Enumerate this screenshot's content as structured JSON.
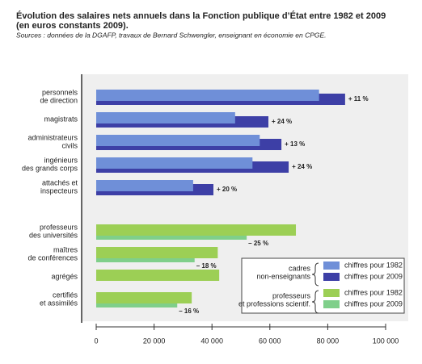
{
  "chart_data": {
    "type": "bar",
    "orientation": "horizontal",
    "title": [
      "Évolution des salaires nets annuels dans la Fonction publique d’État entre 1982 et 2009",
      "(en euros constants 2009)."
    ],
    "source": "Sources : données de la DGAFP, travaux de Bernard Schwengler, enseignant en économie en CPGE.",
    "xlim": [
      0,
      100000
    ],
    "xticks": [
      0,
      {
        "value": 20000,
        "label": "20 000"
      },
      {
        "value": 40000,
        "label": "40 000"
      },
      {
        "value": 60000,
        "label": "60 000"
      },
      {
        "value": 80000,
        "label": "80 000"
      },
      {
        "value": 100000,
        "label": "100 000"
      }
    ],
    "groups": [
      {
        "name": [
          "cadres",
          "non-enseignants"
        ],
        "categories": [
          [
            "personnels",
            "de direction"
          ],
          [
            "magistrats"
          ],
          [
            "administrateurs",
            "civils"
          ],
          [
            "ingénieurs",
            "des grands corps"
          ],
          [
            "attachés et",
            "inspecteurs"
          ]
        ],
        "series": [
          {
            "name": "chiffres pour 1982",
            "color": "#6f8fd8",
            "values": [
              77000,
              48000,
              56500,
              54000,
              33500
            ]
          },
          {
            "name": "chiffres pour 2009",
            "color": "#3d3fa6",
            "values": [
              86000,
              59500,
              64000,
              66500,
              40500
            ]
          }
        ],
        "value_labels": [
          "+ 11 %",
          "+ 24 %",
          "+ 13 %",
          "+ 24 %",
          "+ 20 %"
        ]
      },
      {
        "name": [
          "professeurs",
          "et professions scientif."
        ],
        "categories": [
          [
            "professeurs",
            "des universités"
          ],
          [
            "maîtres",
            "de conférences"
          ],
          [
            "agrégés"
          ],
          [
            "certifiés",
            "et assimilés"
          ]
        ],
        "series": [
          {
            "name": "chiffres pour 1982",
            "color": "#9ccf55",
            "values": [
              69000,
              42000,
              42500,
              33000
            ]
          },
          {
            "name": "chiffres pour 2009",
            "color": "#7fcf8a",
            "values": [
              52000,
              34000,
              null,
              28000
            ]
          }
        ],
        "value_labels": [
          "– 25 %",
          "– 18 %",
          null,
          "– 16 %"
        ]
      }
    ]
  }
}
